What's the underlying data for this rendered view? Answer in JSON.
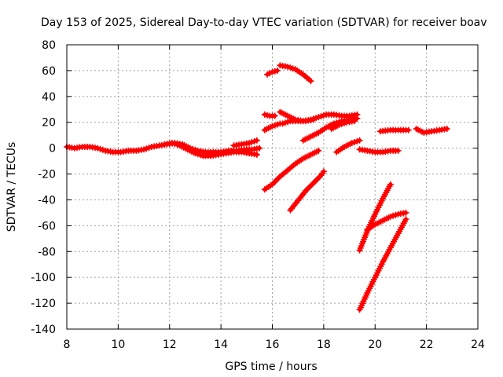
{
  "chart_data": {
    "type": "scatter",
    "title": "Day 153 of 2025, Sidereal Day-to-day VTEC variation (SDTVAR) for receiver boav",
    "xlabel": "GPS time / hours",
    "ylabel": "SDTVAR / TECUs",
    "xlim": [
      8,
      24
    ],
    "ylim": [
      -140,
      80
    ],
    "xticks": [
      8,
      10,
      12,
      14,
      16,
      18,
      20,
      22,
      24
    ],
    "yticks": [
      -140,
      -120,
      -100,
      -80,
      -60,
      -40,
      -20,
      0,
      20,
      40,
      60,
      80
    ],
    "grid": true,
    "series_color": "#ff0000",
    "series": [
      {
        "x": [
          8.0,
          8.3,
          8.6,
          8.9,
          9.2,
          9.5,
          9.8,
          10.1,
          10.4,
          10.7,
          11.0,
          11.3,
          11.6,
          11.9,
          12.2,
          12.5,
          12.8,
          13.1,
          13.4,
          13.7,
          14.0,
          14.3,
          14.6,
          14.9,
          15.2,
          15.5
        ],
        "y": [
          1,
          0,
          1,
          1,
          0,
          -2,
          -3,
          -3,
          -2,
          -2,
          -1,
          1,
          2,
          3,
          4,
          3,
          0,
          -2,
          -3,
          -3,
          -3,
          -2,
          -2,
          -1,
          -1,
          0
        ]
      },
      {
        "x": [
          11.8,
          12.1,
          12.4,
          12.7,
          13.0,
          13.3,
          13.6,
          13.9,
          14.2,
          14.5,
          14.8,
          15.1,
          15.4
        ],
        "y": [
          3,
          4,
          2,
          -1,
          -4,
          -6,
          -6,
          -5,
          -4,
          -3,
          -3,
          -4,
          -5
        ]
      },
      {
        "x": [
          14.5,
          14.8,
          15.1,
          15.4
        ],
        "y": [
          2,
          3,
          4,
          6
        ]
      },
      {
        "x": [
          15.8,
          16.0,
          16.2
        ],
        "y": [
          57,
          59,
          60
        ]
      },
      {
        "x": [
          16.3,
          16.6,
          16.9,
          17.2,
          17.5
        ],
        "y": [
          64,
          63,
          61,
          57,
          52
        ]
      },
      {
        "x": [
          15.7,
          15.9,
          16.1
        ],
        "y": [
          26,
          25,
          25
        ]
      },
      {
        "x": [
          15.7,
          16.0,
          16.3
        ],
        "y": [
          14,
          17,
          19
        ]
      },
      {
        "x": [
          16.3,
          16.6,
          16.9,
          17.2,
          17.5,
          17.8,
          18.1,
          18.4,
          18.7,
          19.0,
          19.3
        ],
        "y": [
          28,
          25,
          22,
          21,
          22,
          24,
          26,
          26,
          25,
          25,
          26
        ]
      },
      {
        "x": [
          16.4,
          16.7,
          17.0,
          17.3,
          17.6
        ],
        "y": [
          19,
          21,
          21,
          21,
          22
        ]
      },
      {
        "x": [
          17.2,
          17.5,
          17.8,
          18.1,
          18.4,
          18.7,
          19.0,
          19.3
        ],
        "y": [
          6,
          9,
          12,
          16,
          19,
          21,
          22,
          23
        ]
      },
      {
        "x": [
          18.3,
          18.6,
          18.9,
          19.2
        ],
        "y": [
          15,
          18,
          20,
          21
        ]
      },
      {
        "x": [
          15.7,
          16.0,
          16.3,
          16.6,
          16.9,
          17.2,
          17.5,
          17.8
        ],
        "y": [
          -32,
          -28,
          -22,
          -17,
          -12,
          -8,
          -5,
          -2
        ]
      },
      {
        "x": [
          16.7,
          16.9,
          17.1,
          17.3,
          17.5,
          17.7,
          17.9,
          18.0
        ],
        "y": [
          -48,
          -43,
          -38,
          -33,
          -29,
          -25,
          -21,
          -18
        ]
      },
      {
        "x": [
          18.5,
          18.8,
          19.1,
          19.4
        ],
        "y": [
          -3,
          1,
          4,
          6
        ]
      },
      {
        "x": [
          19.4,
          19.7,
          20.0,
          20.3,
          20.6,
          20.9
        ],
        "y": [
          -1,
          -2,
          -3,
          -3,
          -2,
          -2
        ]
      },
      {
        "x": [
          20.2,
          20.6,
          21.0,
          21.3
        ],
        "y": [
          13,
          14,
          14,
          14
        ]
      },
      {
        "x": [
          21.6,
          21.9,
          22.2,
          22.5,
          22.8
        ],
        "y": [
          15,
          12,
          13,
          14,
          15
        ]
      },
      {
        "x": [
          19.4,
          19.7,
          20.0,
          20.3,
          20.6
        ],
        "y": [
          -79,
          -64,
          -51,
          -39,
          -28
        ]
      },
      {
        "x": [
          19.7,
          20.0,
          20.3,
          20.6,
          20.9,
          21.2
        ],
        "y": [
          -63,
          -59,
          -56,
          -53,
          -51,
          -50
        ]
      },
      {
        "x": [
          19.4,
          19.7,
          20.0,
          20.3,
          20.6,
          20.9,
          21.2
        ],
        "y": [
          -125,
          -112,
          -100,
          -88,
          -77,
          -66,
          -55
        ]
      }
    ]
  }
}
